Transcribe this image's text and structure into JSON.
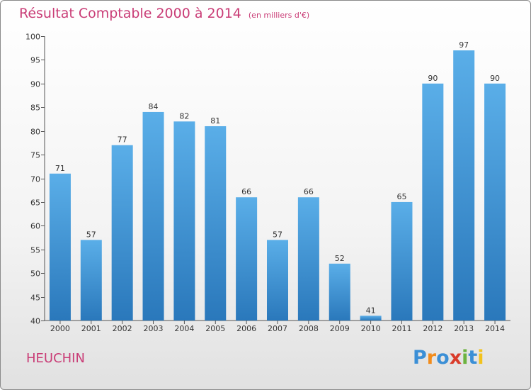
{
  "header": {
    "title": "Résultat Comptable 2000 à 2014",
    "subtitle": "(en milliers d'€)"
  },
  "commune": "HEUCHIN",
  "logo": {
    "text": "Proxiti",
    "letters": [
      {
        "ch": "P",
        "color": "#3b8fd6"
      },
      {
        "ch": "r",
        "color": "#f28c1c"
      },
      {
        "ch": "o",
        "color": "#3b8fd6"
      },
      {
        "ch": "x",
        "color": "#d93c2b"
      },
      {
        "ch": "i",
        "color": "#6cb33f"
      },
      {
        "ch": "t",
        "color": "#3b8fd6"
      },
      {
        "ch": "i",
        "color": "#f2c21c"
      }
    ]
  },
  "chart_data": {
    "type": "bar",
    "categories": [
      "2000",
      "2001",
      "2002",
      "2003",
      "2004",
      "2005",
      "2006",
      "2007",
      "2008",
      "2009",
      "2010",
      "2011",
      "2012",
      "2013",
      "2014"
    ],
    "values": [
      71,
      57,
      77,
      84,
      82,
      81,
      66,
      57,
      66,
      52,
      41,
      65,
      90,
      97,
      90
    ],
    "ylim": [
      40,
      100
    ],
    "yticks": [
      40,
      45,
      50,
      55,
      60,
      65,
      70,
      75,
      80,
      85,
      90,
      95,
      100
    ],
    "grid": false,
    "bar_color_top": "#5aaee8",
    "bar_color_bottom": "#2a78bb"
  }
}
